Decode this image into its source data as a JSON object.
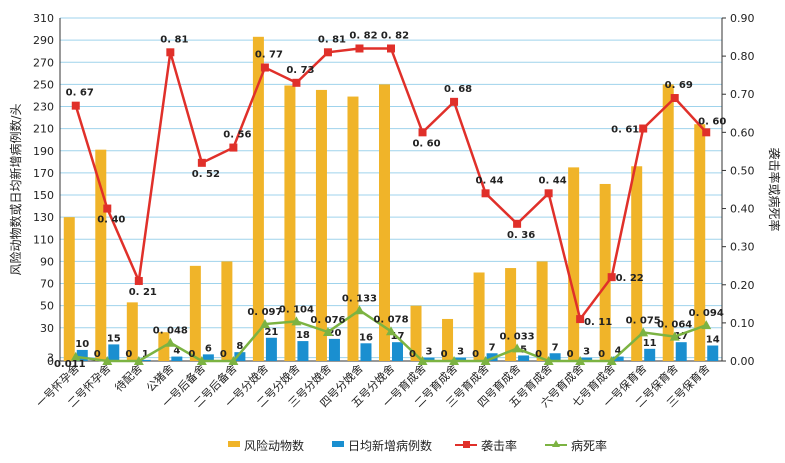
{
  "chart_data": {
    "type": "bar",
    "title": "",
    "ylabel_left": "风险动物数或日均新增病例数/头",
    "ylabel_right": "袭击率或病死率",
    "ylim_left": [
      0,
      310
    ],
    "ylim_right": [
      0,
      0.9
    ],
    "yticks_left": [
      "0",
      "3",
      "30",
      "50",
      "70",
      "90",
      "110",
      "130",
      "150",
      "170",
      "190",
      "210",
      "230",
      "250",
      "270",
      "290",
      "310"
    ],
    "yticks_right": [
      "0.00",
      "0.10",
      "0.20",
      "0.30",
      "0.40",
      "0.50",
      "0.60",
      "0.70",
      "0.80",
      "0.90"
    ],
    "grid": true,
    "legend_position": "bottom",
    "categories": [
      "一号怀孕舍",
      "二号怀孕舍",
      "待配舍",
      "公猪舍",
      "一号后备舍",
      "二号后备舍",
      "一号分娩舍",
      "二号分娩舍",
      "三号分娩舍",
      "四号分娩舍",
      "五号分娩舍",
      "一号育成舍",
      "二号育成舍",
      "三号育成舍",
      "四号育成舍",
      "五号育成舍",
      "六号育成舍",
      "七号育成舍",
      "一号保育舍",
      "二号保育舍",
      "三号保育舍"
    ],
    "series": [
      {
        "name": "风险动物数",
        "kind": "bar",
        "axis": "left",
        "color": "#f0b429",
        "values": [
          130,
          191,
          53,
          26,
          86,
          90,
          293,
          249,
          245,
          239,
          250,
          50,
          38,
          80,
          84,
          90,
          175,
          160,
          176,
          250,
          214
        ]
      },
      {
        "name": "日均新增病例数",
        "kind": "bar",
        "axis": "left",
        "color": "#1a8fd0",
        "values": [
          10,
          15,
          1,
          4,
          6,
          8,
          21,
          18,
          20,
          16,
          17,
          3,
          3,
          7,
          5,
          7,
          3,
          4,
          11,
          17,
          14
        ]
      },
      {
        "name": "袭击率",
        "kind": "line",
        "axis": "right",
        "color": "#e0302a",
        "values": [
          0.67,
          0.4,
          0.21,
          0.81,
          0.52,
          0.56,
          0.77,
          0.73,
          0.81,
          0.82,
          0.82,
          0.6,
          0.68,
          0.44,
          0.36,
          0.44,
          0.11,
          0.22,
          0.61,
          0.69,
          0.6
        ],
        "labels": [
          "0. 67",
          "0. 40",
          "0. 21",
          "0. 81",
          "0. 52",
          "0. 56",
          "0. 77",
          "0. 73",
          "0. 81",
          "0. 82",
          "0. 82",
          "0. 60",
          "0. 68",
          "0. 44",
          "0. 36",
          "0. 44",
          "0. 11",
          "0. 22",
          "0. 61",
          "0. 69",
          "0. 60"
        ]
      },
      {
        "name": "病死率",
        "kind": "line",
        "axis": "right",
        "color": "#7cb342",
        "values": [
          0.011,
          0,
          0,
          0.048,
          0,
          0,
          0.097,
          0.104,
          0.076,
          0.133,
          0.078,
          0,
          0,
          0,
          0.033,
          0,
          0,
          0,
          0.075,
          0.064,
          0.094
        ],
        "labels": [
          "0.011",
          "0",
          "0",
          "0. 048",
          "0",
          "0",
          "0. 097",
          "0. 104",
          "0. 076",
          "0. 133",
          "0. 078",
          "0",
          "0",
          "0",
          "0. 033",
          "0",
          "0",
          "0",
          "0. 075",
          "0. 064",
          "0. 094"
        ]
      }
    ]
  }
}
